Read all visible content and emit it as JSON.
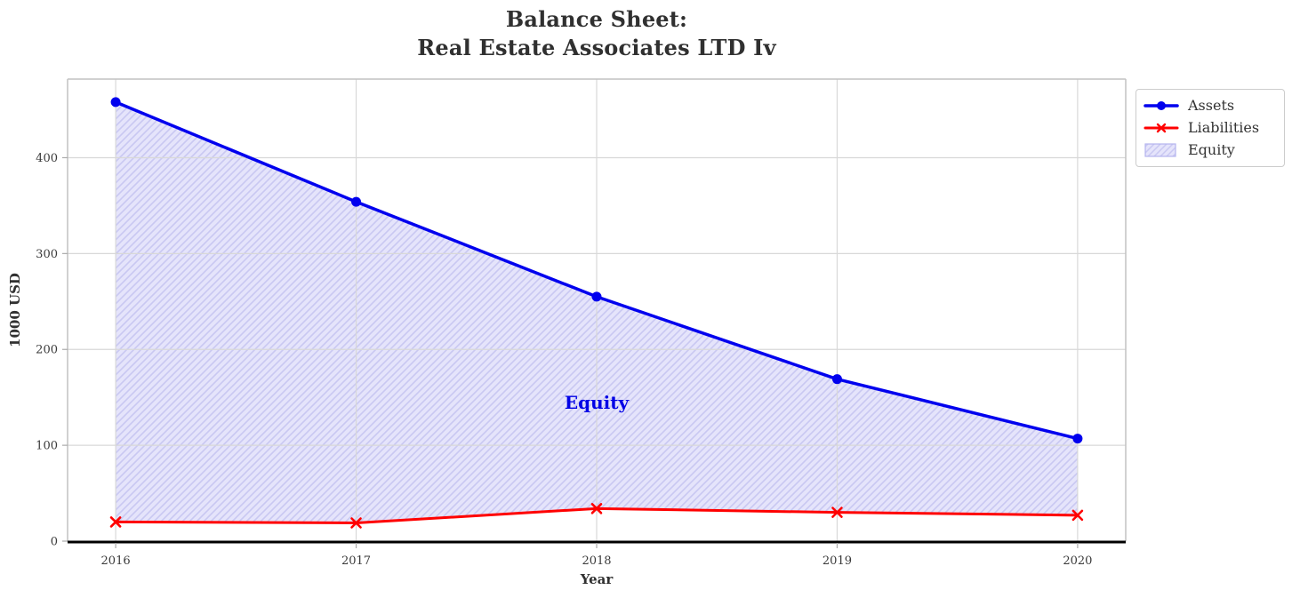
{
  "title": {
    "line1": "Balance Sheet:",
    "line2": "Real Estate Associates LTD Iv"
  },
  "chart_data": {
    "type": "line",
    "title": "Balance Sheet: Real Estate Associates LTD Iv",
    "xlabel": "Year",
    "ylabel": "1000 USD",
    "x": [
      2016,
      2017,
      2018,
      2019,
      2020
    ],
    "series": [
      {
        "name": "Assets",
        "color": "#0000ee",
        "marker": "circle",
        "line_width": 3.5,
        "values": [
          458,
          354,
          255,
          169,
          107
        ]
      },
      {
        "name": "Liabilities",
        "color": "#ff0000",
        "marker": "x",
        "line_width": 3,
        "values": [
          20,
          19,
          34,
          30,
          27
        ]
      }
    ],
    "fill_between": {
      "label": "Equity",
      "between": [
        "Assets",
        "Liabilities"
      ],
      "face_color": "#e5e4fb",
      "hatch_color": "#c9c8f2",
      "hatch_style": "//",
      "edge_color": "#b4b3ee"
    },
    "annotation": {
      "text": "Equity",
      "x": 2018,
      "y": 144.5,
      "color": "#0000e6"
    },
    "xticks": [
      2016,
      2017,
      2018,
      2019,
      2020
    ],
    "yticks": [
      0,
      100,
      200,
      300,
      400
    ],
    "xlim": [
      2015.8,
      2020.2
    ],
    "ylim": [
      0,
      482
    ],
    "grid": true,
    "grid_color": "#d8d8d8",
    "spine_color": "#c2c2c2",
    "bottom_spine_color": "#000000",
    "tick_label_color": "#3a3a3a",
    "legend_position": "upper-right-outside"
  },
  "legend": {
    "items": [
      {
        "label": "Assets",
        "type": "line-circle",
        "color": "#0000ee"
      },
      {
        "label": "Liabilities",
        "type": "line-x",
        "color": "#ff0000"
      },
      {
        "label": "Equity",
        "type": "patch-hatch",
        "face": "#e5e4fb",
        "hatch": "#c9c8f2",
        "edge": "#b4b3ee"
      }
    ]
  }
}
